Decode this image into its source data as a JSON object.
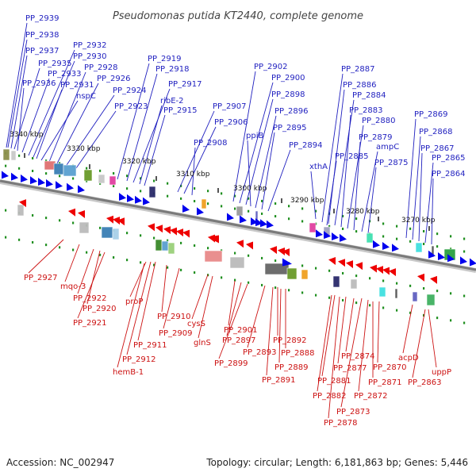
{
  "title": "Pseudomonas putida KT2440, complete genome",
  "footer": {
    "accession": "Accession: NC_002947",
    "topology": "Topology: circular; Length: 6,181,863 bp; Genes: 5,446"
  },
  "colors": {
    "forward_arrow": "#0000ee",
    "reverse_arrow": "#ee0000",
    "backbone": "#7a7a7a",
    "tick": "#1f8f1f",
    "top_label": "#1f1fbf",
    "bottom_label": "#cc1111"
  },
  "scale_labels": [
    "3340 kbp",
    "3330 kbp",
    "3320 kbp",
    "3310 kbp",
    "3300 kbp",
    "3290 kbp",
    "3280 kbp",
    "3270 kbp"
  ],
  "top_genes": [
    "PP_2939",
    "PP_2938",
    "PP_2937",
    "PP_2935",
    "PP_2936",
    "PP_2933",
    "PP_2932",
    "PP_2930",
    "PP_2931",
    "nspC",
    "PP_2928",
    "PP_2926",
    "PP_2924",
    "PP_2923",
    "PP_2919",
    "PP_2918",
    "PP_2917",
    "ribE-2",
    "PP_2915",
    "PP_2907",
    "PP_2906",
    "PP_2908",
    "PP_2902",
    "PP_2900",
    "PP_2898",
    "ppiB",
    "PP_2896",
    "PP_2895",
    "PP_2894",
    "xthA",
    "PP_2887",
    "PP_2886",
    "PP_2884",
    "PP_2883",
    "PP_2880",
    "PP_2879",
    "PP_2885",
    "ampC",
    "PP_2875",
    "PP_2869",
    "PP_2868",
    "PP_2867",
    "PP_2865",
    "PP_2864"
  ],
  "bottom_genes": [
    "PP_2927",
    "mqo-3",
    "PP_2922",
    "PP_2920",
    "PP_2921",
    "proP",
    "PP_2910",
    "PP_2909",
    "PP_2911",
    "PP_2912",
    "hemB-1",
    "cysS",
    "glnS",
    "PP_2901",
    "PP_2897",
    "PP_2899",
    "PP_2893",
    "PP_2892",
    "PP_2888",
    "PP_2889",
    "PP_2891",
    "PP_2874",
    "PP_2877",
    "PP_2870",
    "PP_2881",
    "PP_2871",
    "PP_2882",
    "PP_2872",
    "PP_2873",
    "PP_2878",
    "acpD",
    "PP_2863",
    "uppP"
  ]
}
